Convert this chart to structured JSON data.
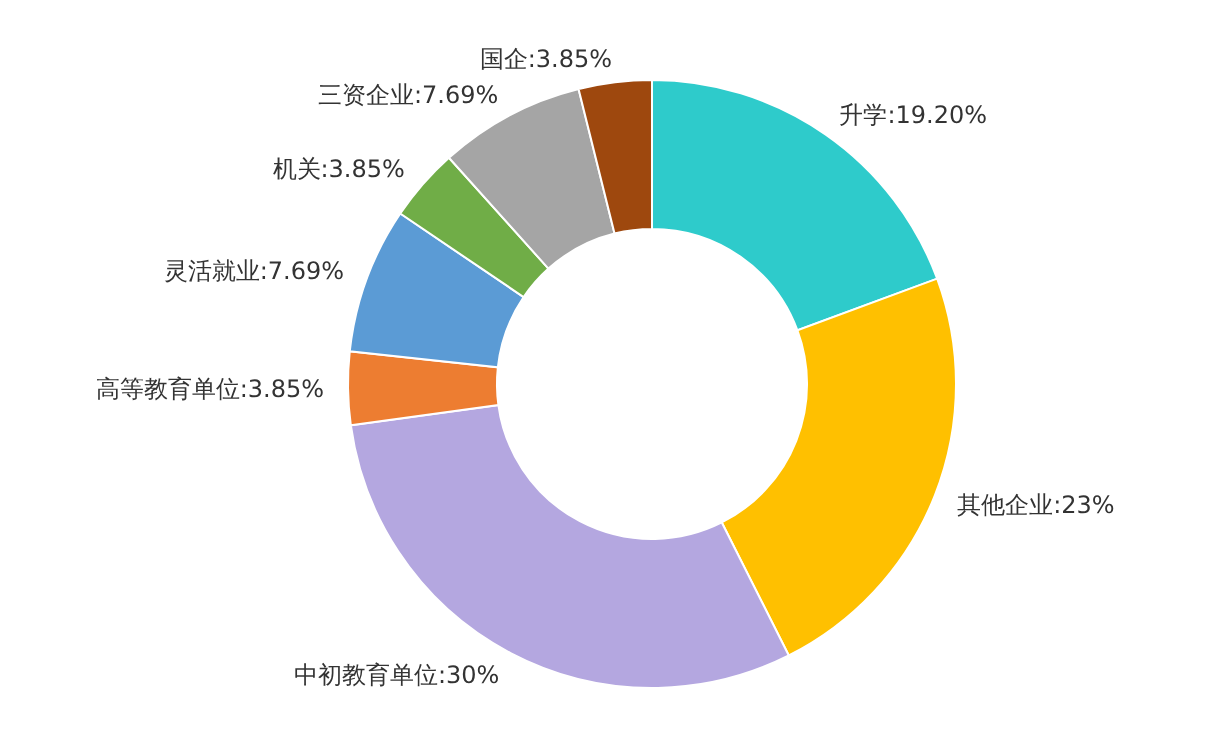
{
  "chart_data": {
    "type": "donut",
    "categories": [
      "升学",
      "其他企业",
      "中初教育单位",
      "高等教育单位",
      "灵活就业",
      "机关",
      "三资企业",
      "国企"
    ],
    "values": [
      19.2,
      23,
      30,
      3.85,
      7.69,
      3.85,
      7.69,
      3.85
    ],
    "value_labels": [
      "19.20%",
      "23%",
      "30%",
      "3.85%",
      "7.69%",
      "3.85%",
      "7.69%",
      "3.85%"
    ],
    "colors": [
      "#2ecbcb",
      "#ffc000",
      "#b4a7e0",
      "#ed7d31",
      "#5b9bd5",
      "#70ad47",
      "#a5a5a5",
      "#9e480e"
    ]
  }
}
